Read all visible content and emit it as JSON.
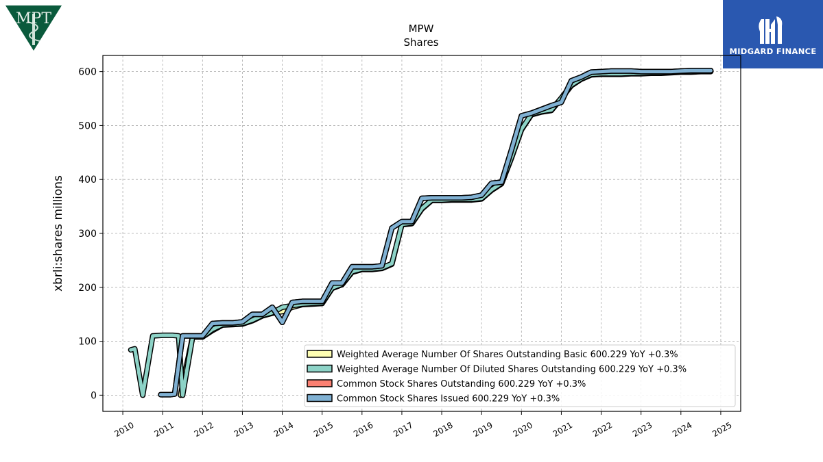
{
  "logos": {
    "left": {
      "text": "MPT",
      "color": "#0a5a3c"
    },
    "right": {
      "text": "MIDGARD FINANCE",
      "color": "#2a58b0"
    }
  },
  "chart_data": {
    "type": "line",
    "title": "MPW",
    "subtitle": "Shares",
    "xlabel": "",
    "ylabel": "xbrli:shares millions",
    "xlim": [
      2009.5,
      2025.5
    ],
    "ylim": [
      -30,
      630
    ],
    "xticks": [
      "2010",
      "2011",
      "2012",
      "2013",
      "2014",
      "2015",
      "2016",
      "2017",
      "2018",
      "2019",
      "2020",
      "2021",
      "2022",
      "2023",
      "2024",
      "2025"
    ],
    "yticks": [
      0,
      100,
      200,
      300,
      400,
      500,
      600
    ],
    "grid": true,
    "legend_position": "lower-right",
    "series": [
      {
        "name": "Weighted Average Number Of Shares Outstanding Basic  600.229 YoY +0.3%",
        "color": "#ffffb3",
        "x": [
          2011.45,
          2011.5,
          2011.75,
          2012.0,
          2012.25,
          2012.5,
          2012.75,
          2013.0,
          2013.25,
          2013.5,
          2013.75,
          2014.0,
          2014.25,
          2014.5,
          2014.75,
          2015.0,
          2015.25,
          2015.5,
          2015.75,
          2016.0,
          2016.25,
          2016.5,
          2016.75,
          2017.0,
          2017.25,
          2017.5,
          2017.75,
          2018.0,
          2018.25,
          2018.5,
          2018.75,
          2019.0,
          2019.25,
          2019.5,
          2019.75,
          2020.0,
          2020.25,
          2020.5,
          2020.75,
          2021.0,
          2021.25,
          2021.5,
          2021.75,
          2022.0,
          2022.25,
          2022.5,
          2022.75,
          2023.0,
          2023.25,
          2023.5,
          2023.75,
          2024.0,
          2024.25,
          2024.5,
          2024.75
        ],
        "y": [
          0,
          20,
          108,
          108,
          120,
          130,
          131,
          132,
          138,
          147,
          152,
          155,
          163,
          168,
          169,
          170,
          198,
          205,
          228,
          233,
          233,
          235,
          243,
          316,
          318,
          345,
          361,
          361,
          362,
          362,
          362,
          364,
          380,
          392,
          440,
          492,
          520,
          525,
          528,
          550,
          574,
          586,
          594,
          595,
          595,
          595,
          596,
          596,
          597,
          597,
          598,
          599,
          599,
          600,
          600
        ]
      },
      {
        "name": "Weighted Average Number Of Diluted Shares Outstanding  600.229 YoY +0.3%",
        "color": "#8dd3c7",
        "x": [
          2010.2,
          2010.3,
          2010.5,
          2010.75,
          2011.0,
          2011.25,
          2011.4,
          2011.5,
          2011.75,
          2012.0,
          2012.25,
          2012.5,
          2012.75,
          2013.0,
          2013.25,
          2013.5,
          2013.75,
          2014.0,
          2014.25,
          2014.5,
          2014.75,
          2015.0,
          2015.25,
          2015.5,
          2015.75,
          2016.0,
          2016.25,
          2016.5,
          2016.75,
          2017.0,
          2017.25,
          2017.5,
          2017.75,
          2018.0,
          2018.25,
          2018.5,
          2018.75,
          2019.0,
          2019.25,
          2019.5,
          2019.75,
          2020.0,
          2020.25,
          2020.5,
          2020.75,
          2021.0,
          2021.25,
          2021.5,
          2021.75,
          2022.0,
          2022.25,
          2022.5,
          2022.75,
          2023.0,
          2023.25,
          2023.5,
          2023.75,
          2024.0,
          2024.25,
          2024.5,
          2024.75
        ],
        "y": [
          84,
          86,
          0,
          110,
          111,
          111,
          110,
          0,
          108,
          108,
          122,
          131,
          132,
          133,
          139,
          148,
          153,
          163,
          166,
          169,
          170,
          171,
          199,
          206,
          229,
          234,
          234,
          236,
          244,
          317,
          319,
          346,
          362,
          362,
          363,
          363,
          363,
          365,
          381,
          393,
          441,
          493,
          521,
          526,
          529,
          551,
          575,
          587,
          595,
          596,
          596,
          596,
          597,
          597,
          598,
          598,
          599,
          600,
          600,
          601,
          601
        ]
      },
      {
        "name": "Common Stock Shares Outstanding  600.229 YoY +0.3%",
        "color": "#fb8072",
        "x": [
          2010.95,
          2011.2,
          2011.3,
          2011.5,
          2011.75,
          2012.0,
          2012.25,
          2012.5,
          2012.75,
          2013.0,
          2013.25,
          2013.5,
          2013.75,
          2014.0,
          2014.25,
          2014.5,
          2014.75,
          2015.0,
          2015.25,
          2015.5,
          2015.75,
          2016.0,
          2016.25,
          2016.5,
          2016.75,
          2017.0,
          2017.25,
          2017.5,
          2017.75,
          2018.0,
          2018.25,
          2018.5,
          2018.75,
          2019.0,
          2019.25,
          2019.5,
          2019.75,
          2020.0,
          2020.25,
          2020.5,
          2020.75,
          2021.0,
          2021.25,
          2021.5,
          2021.75,
          2022.0,
          2022.25,
          2022.5,
          2022.75,
          2023.0,
          2023.25,
          2023.5,
          2023.75,
          2024.0,
          2024.25,
          2024.5,
          2024.75
        ],
        "y": [
          1,
          1,
          2,
          110,
          110,
          110,
          133,
          134,
          134,
          136,
          150,
          150,
          163,
          135,
          172,
          174,
          174,
          174,
          208,
          208,
          238,
          238,
          238,
          240,
          310,
          322,
          322,
          365,
          366,
          366,
          366,
          366,
          367,
          371,
          393,
          395,
          455,
          518,
          523,
          530,
          537,
          543,
          583,
          590,
          599,
          600,
          601,
          601,
          601,
          600,
          600,
          600,
          600,
          601,
          602,
          602,
          602
        ]
      },
      {
        "name": "Common Stock Shares Issued  600.229 YoY +0.3%",
        "color": "#80b1d3",
        "x": [
          2010.95,
          2011.2,
          2011.3,
          2011.5,
          2011.75,
          2012.0,
          2012.25,
          2012.5,
          2012.75,
          2013.0,
          2013.25,
          2013.5,
          2013.75,
          2014.0,
          2014.25,
          2014.5,
          2014.75,
          2015.0,
          2015.25,
          2015.5,
          2015.75,
          2016.0,
          2016.25,
          2016.5,
          2016.75,
          2017.0,
          2017.25,
          2017.5,
          2017.75,
          2018.0,
          2018.25,
          2018.5,
          2018.75,
          2019.0,
          2019.25,
          2019.5,
          2019.75,
          2020.0,
          2020.25,
          2020.5,
          2020.75,
          2021.0,
          2021.25,
          2021.5,
          2021.75,
          2022.0,
          2022.25,
          2022.5,
          2022.75,
          2023.0,
          2023.25,
          2023.5,
          2023.75,
          2024.0,
          2024.25,
          2024.5,
          2024.75
        ],
        "y": [
          1,
          1,
          2,
          110,
          110,
          110,
          133,
          134,
          134,
          136,
          150,
          150,
          163,
          135,
          172,
          174,
          174,
          174,
          208,
          208,
          238,
          238,
          238,
          240,
          310,
          322,
          322,
          365,
          366,
          366,
          366,
          366,
          367,
          371,
          393,
          395,
          455,
          518,
          523,
          530,
          537,
          543,
          583,
          590,
          599,
          600,
          601,
          601,
          601,
          600,
          600,
          600,
          600,
          601,
          602,
          602,
          602
        ]
      }
    ]
  }
}
